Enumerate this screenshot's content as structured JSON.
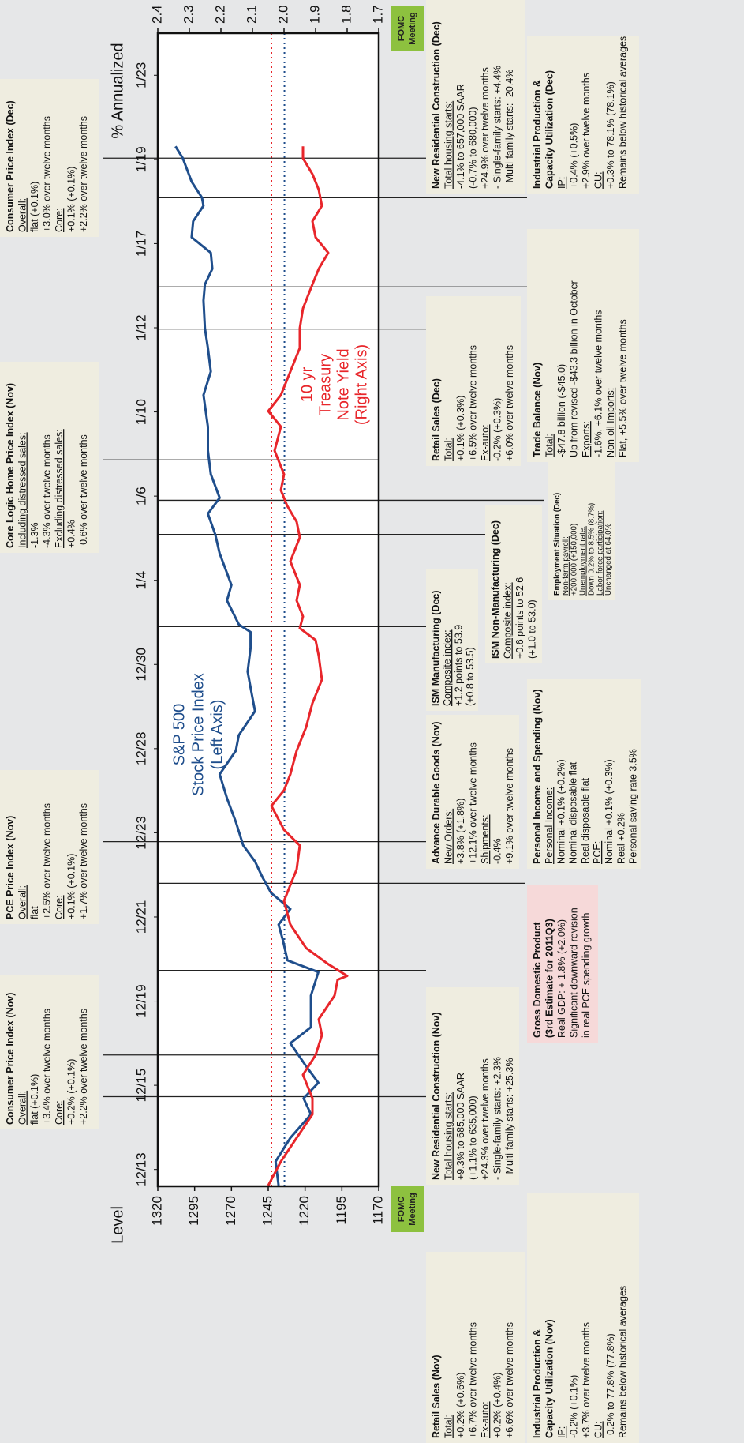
{
  "chart_data": {
    "type": "line",
    "left_axis_label": "Level",
    "right_axis_label": "% Annualized",
    "xlim": [
      -0.4,
      27
    ],
    "xticks": [
      {
        "value": 0,
        "label": "12/13"
      },
      {
        "value": 2,
        "label": "12/15"
      },
      {
        "value": 4,
        "label": "12/19"
      },
      {
        "value": 6,
        "label": "12/21"
      },
      {
        "value": 8,
        "label": "12/23"
      },
      {
        "value": 10,
        "label": "12/28"
      },
      {
        "value": 12,
        "label": "12/30"
      },
      {
        "value": 14,
        "label": "1/4"
      },
      {
        "value": 16,
        "label": "1/6"
      },
      {
        "value": 18,
        "label": "1/10"
      },
      {
        "value": 20,
        "label": "1/12"
      },
      {
        "value": 22,
        "label": "1/17"
      },
      {
        "value": 24,
        "label": "1/19"
      },
      {
        "value": 26,
        "label": "1/23"
      }
    ],
    "ylim": [
      1170,
      1320
    ],
    "yticks": [
      1170,
      1195,
      1220,
      1245,
      1270,
      1295,
      1320
    ],
    "y2lim": [
      1.7,
      2.4
    ],
    "y2ticks": [
      1.7,
      1.8,
      1.9,
      {
        "value": 2,
        "label": "2.0"
      },
      2.1,
      2.2,
      2.3,
      2.4
    ],
    "series": [
      {
        "name_lines": [
          "S&P 500",
          "Stock Price Index",
          "(Left Axis)"
        ],
        "color": "#1f4e8c",
        "axis": "y",
        "x": [
          -0.38,
          0.19,
          0.75,
          1.31,
          1.69,
          2.06,
          2.44,
          3.0,
          3.38,
          4.13,
          4.69,
          4.97,
          5.44,
          5.82,
          6.19,
          6.57,
          6.95,
          7.32,
          7.7,
          8.26,
          8.82,
          9.39,
          9.95,
          10.32,
          10.89,
          11.45,
          11.83,
          12.39,
          12.77,
          12.95,
          13.52,
          13.89,
          14.64,
          15.09,
          15.58,
          15.96,
          16.52,
          17.08,
          17.65,
          18.4,
          18.96,
          19.52,
          19.99,
          20.65,
          21.03,
          21.4,
          21.78,
          22.15,
          22.53,
          22.9,
          23.09,
          23.47,
          24.03,
          24.31
        ],
        "values": [
          1238,
          1240,
          1230,
          1216,
          1221,
          1211,
          1219,
          1230,
          1216,
          1216,
          1211,
          1232,
          1235,
          1238,
          1230,
          1243,
          1249,
          1254,
          1262,
          1267,
          1273,
          1278,
          1267,
          1265,
          1254,
          1257,
          1259,
          1257,
          1257,
          1265,
          1273,
          1270,
          1278,
          1281,
          1286,
          1278,
          1284,
          1286,
          1286,
          1289,
          1284,
          1286,
          1288,
          1289,
          1288,
          1283,
          1284,
          1297,
          1296,
          1289,
          1290,
          1297,
          1303,
          1308
        ]
      },
      {
        "name_lines": [
          "10 yr",
          "Treasury",
          "Note Yield",
          "(Right Axis)"
        ],
        "color": "#e8262b",
        "axis": "y2",
        "x": [
          -0.38,
          0.19,
          0.75,
          1.31,
          1.69,
          2.25,
          2.72,
          3.19,
          3.57,
          4.13,
          4.51,
          4.6,
          4.88,
          5.26,
          5.82,
          6.38,
          6.76,
          7.13,
          7.7,
          8.07,
          8.64,
          9.01,
          9.39,
          9.95,
          10.51,
          11.08,
          11.64,
          12.2,
          12.58,
          12.86,
          13.14,
          13.52,
          13.89,
          14.45,
          15.02,
          15.39,
          15.77,
          16.14,
          16.52,
          17.08,
          17.65,
          18.02,
          18.4,
          18.96,
          19.52,
          19.99,
          20.46,
          21.03,
          21.4,
          21.78,
          22.15,
          22.53,
          22.9,
          23.28,
          23.65,
          24.03,
          24.31
        ],
        "values": [
          2.05,
          2.01,
          1.96,
          1.91,
          1.91,
          1.94,
          1.9,
          1.88,
          1.89,
          1.84,
          1.83,
          1.8,
          1.86,
          1.93,
          1.98,
          2.0,
          1.98,
          1.96,
          1.95,
          2.0,
          2.04,
          2.0,
          1.98,
          1.96,
          1.93,
          1.91,
          1.88,
          1.89,
          1.9,
          1.95,
          1.94,
          1.96,
          1.95,
          1.98,
          1.95,
          1.96,
          1.99,
          2.01,
          2.0,
          2.03,
          2.01,
          2.05,
          2.01,
          1.98,
          1.95,
          1.95,
          1.94,
          1.91,
          1.89,
          1.86,
          1.9,
          1.91,
          1.88,
          1.89,
          1.91,
          1.94,
          1.94
        ]
      }
    ],
    "reference_lines": [
      {
        "axis": "y",
        "value": 1234,
        "color": "#1f4e8c"
      },
      {
        "axis": "y2",
        "value": 2.04,
        "color": "#e8262b"
      }
    ],
    "event_x": [
      1.73,
      2.72,
      4.73,
      6.8,
      7.79,
      12.9,
      15.09,
      15.9,
      16.86,
      19.97,
      20.97,
      23.09,
      24.03
    ],
    "fomc_boxes": [
      [
        "FOMC",
        "Meeting"
      ],
      [
        "FOMC",
        "Meeting"
      ]
    ],
    "boxes": [
      {
        "title": [
          "Consumer Price Index (Nov)"
        ],
        "lines": [
          "Overall:",
          "flat (+0.1%)",
          "+3.4% over twelve months",
          "Core:",
          "+0.2% (+0.1%)",
          "+2.2% over twelve months"
        ]
      },
      {
        "title": [
          "PCE Price Index (Nov)"
        ],
        "lines": [
          "Overall:",
          "flat",
          "+2.5% over twelve months",
          "Core:",
          "+0.1% (+0.1%)",
          "+1.7% over twelve months"
        ]
      },
      {
        "title": [
          "Core Logic Home Price Index (Nov)"
        ],
        "lines": [
          "Including distressed sales:",
          "-1.3%",
          "-4.3% over twelve months",
          "Excluding distressed sales:",
          "+0.4%",
          "-0.6% over twelve months"
        ]
      },
      {
        "title": [
          "Consumer Price Index (Dec)"
        ],
        "lines": [
          "Overall:",
          "flat (+0.1%)",
          "+3.0% over twelve months",
          "Core:",
          "+0.1% (+0.1%)",
          "+2.2% over twelve months"
        ]
      },
      {
        "title": [
          "Retail Sales (Nov)"
        ],
        "lines": [
          "Total:",
          "+0.2% (+0.6%)",
          "+6.7% over twelve months",
          "Ex-auto:",
          "+0.2% (+0.4%)",
          "+6.6% over twelve months"
        ]
      },
      {
        "title": [
          "Industrial Production &",
          "Capacity Utilization (Nov)"
        ],
        "lines": [
          "IP:",
          "-0.2% (+0.1%)",
          "+3.7% over twelve months",
          "CU:",
          "-0.2% to 77.8%  (77.8%)",
          "Remains below historical averages"
        ]
      },
      {
        "title": [
          "New Residential Construction (Nov)"
        ],
        "lines": [
          "Total housing starts:",
          "+9.3% to 685,000  SAAR",
          "(+1.1% to 635,000)",
          "+24.3% over twelve months",
          "- Single-family starts: +2.3%",
          "- Multi-family starts: +25.3%"
        ]
      },
      {
        "title": [
          "Gross Domestic Product",
          "(3rd Estimate for 2011Q3)"
        ],
        "lines": [
          "Real GDP: + 1.8%  (+2.0%)",
          "Significant downward revision",
          "in real PCE spending growth"
        ]
      },
      {
        "title": [
          "Advance Durable Goods (Nov)"
        ],
        "lines": [
          "New Orders:",
          "+3.8% (+1.8%)",
          "+12.1% over twelve months",
          "Shipments:",
          "-0.4%",
          "+9.1% over twelve months"
        ]
      },
      {
        "title": [
          "Personal Income and Spending (Nov)"
        ],
        "lines": [
          "Personal Income:",
          "Nominal +0.1% (+0.2%)",
          "Nominal disposable flat",
          "Real disposable flat",
          "PCE:",
          "Nominal +0.1% (+0.3%)",
          "Real +0.2%",
          "Personal saving rate 3.5%"
        ]
      },
      {
        "title": [
          "ISM Manufacturing (Dec)"
        ],
        "lines": [
          "Composite index:",
          "+1.2 points  to 53.9",
          "(+0.8 to 53.5)"
        ]
      },
      {
        "title": [
          "ISM Non-Manufacturing (Dec)"
        ],
        "lines": [
          "Composite index:",
          "+0.6 points to 52.6",
          "(+1.0 to 53.0)"
        ]
      },
      {
        "title": [
          "Employment Situation (Dec)"
        ],
        "lines": [
          "Non-farm payroll:",
          "+200,000 (+150,000)",
          "Unemployment rate:",
          "Down 0.2% to 8.5%  (8.7%)",
          "Labor force participation:",
          "Unchanged at 64.0%"
        ]
      },
      {
        "title": [
          "Retail Sales (Dec)"
        ],
        "lines": [
          "Total:",
          "+0.1% (+0.3%)",
          "+6.5% over twelve months",
          "Ex-auto:",
          "-0.2% (+0.3%)",
          "+6.0% over twelve months"
        ]
      },
      {
        "title": [
          "Trade Balance (Nov)"
        ],
        "lines": [
          "Total:",
          "-$47.8 billion (-$45.0)",
          "Up from revised -$43.3 billion in October",
          "Exports:",
          "-1.6%, +6.1% over twelve months",
          "Non-oil Imports:",
          "Flat, +5.5% over twelve months"
        ]
      },
      {
        "title": [
          "New Residential Construction (Dec)"
        ],
        "lines": [
          "Total housing starts:",
          "-4.1% to 657,000  SAAR",
          "(-0.7% to 680,000)",
          "+24.9% over twelve months",
          "- Single-family starts: +4.4%",
          "- Multi-family starts: -20.4%"
        ]
      },
      {
        "title": [
          "Industrial Production &",
          "Capacity Utilization (Dec)"
        ],
        "lines": [
          "IP:",
          "+0.4% (+0.5%)",
          "+2.9% over twelve months",
          "CU:",
          "+0.3% to 78.1%  (78.1%)",
          "Remains below historical averages"
        ]
      }
    ]
  }
}
